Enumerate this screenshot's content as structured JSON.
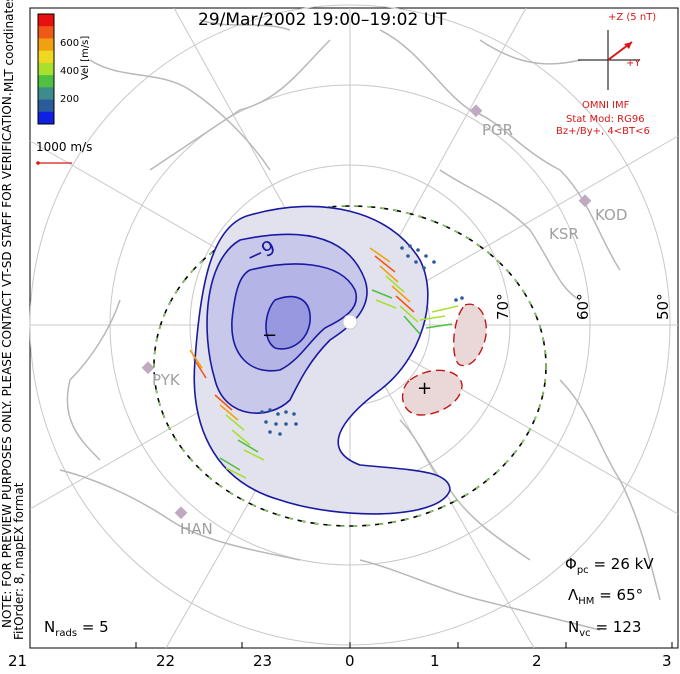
{
  "title": "29/Mar/2002 19:00–19:02 UT",
  "coord_label": "MLT coordinates",
  "velocity_scale": {
    "label": "Vel [m/s]",
    "ticks": [
      "600",
      "400",
      "200"
    ],
    "colors": [
      "#e81010",
      "#f05818",
      "#f0a010",
      "#f0d820",
      "#a8e030",
      "#50c040",
      "#3c8c8c",
      "#2a5c9c",
      "#1020e0"
    ]
  },
  "vector_scale": {
    "label": "1000 m/s",
    "color": "#d81818"
  },
  "imf": {
    "bz_label": "+Z (5 nT)",
    "by_label": "+Y",
    "source": "OMNI IMF",
    "stat_mod": "Stat Mod: RG96",
    "condition": "Bz+/By+, 4<BT<6"
  },
  "side_note": {
    "line1": "NOTE: FOR PREVIEW PURPOSES ONLY. PLEASE CONTACT VT-SD STAFF FOR VERIFICATION.",
    "line2": "FitOrder: 8, mapEX format"
  },
  "stations": [
    "PGR",
    "KOD",
    "KSR",
    "PYK",
    "HAN"
  ],
  "latitude_labels": [
    "70°",
    "60°",
    "50°"
  ],
  "contour_labels": {
    "minus9": "−9",
    "minus": "−",
    "plus": "+"
  },
  "stats": {
    "phi_pc": {
      "symbol": "Φ",
      "sub": "pc",
      "value": "= 26 kV"
    },
    "lambda_hm": {
      "symbol": "Λ",
      "sub": "HM",
      "value": "= 65°"
    },
    "n_vc": {
      "symbol": "N",
      "sub": "vc",
      "value": "= 123"
    },
    "n_rads": {
      "symbol": "N",
      "sub": "rads",
      "value": "= 5"
    }
  },
  "mlt_axis": [
    "21",
    "22",
    "23",
    "0",
    "1",
    "2",
    "3"
  ]
}
